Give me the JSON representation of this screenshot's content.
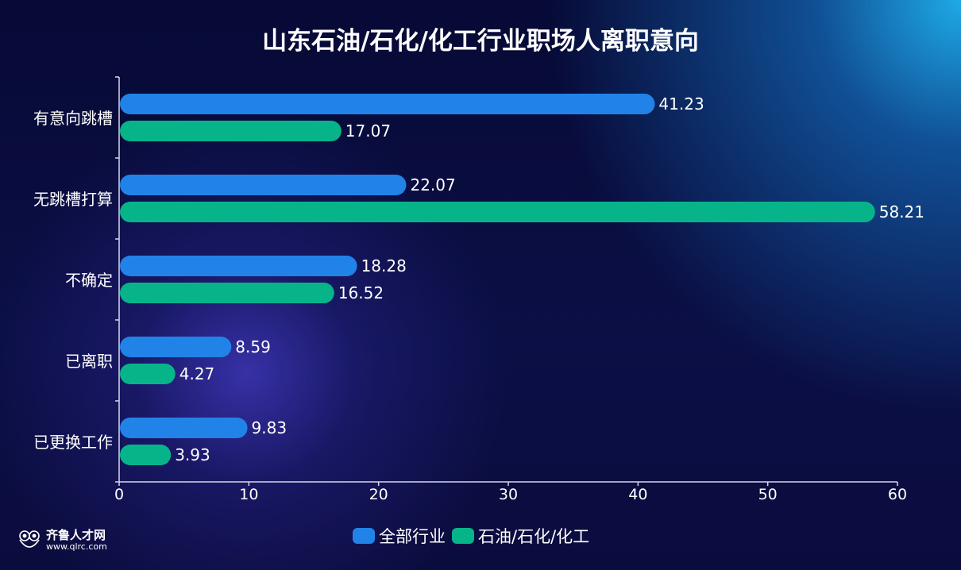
{
  "chart_data": {
    "type": "bar",
    "orientation": "horizontal",
    "title": "山东石油/石化/化工行业职场人离职意向",
    "categories": [
      "有意向跳槽",
      "无跳槽打算",
      "不确定",
      "已离职",
      "已更换工作"
    ],
    "series": [
      {
        "name": "全部行业",
        "color": "#2183e8",
        "values": [
          41.23,
          22.07,
          18.28,
          8.59,
          9.83
        ]
      },
      {
        "name": "石油/石化/化工",
        "color": "#07b48a",
        "values": [
          17.07,
          58.21,
          16.52,
          4.27,
          3.93
        ]
      }
    ],
    "xlim": [
      0,
      60
    ],
    "xticks": [
      0,
      10,
      20,
      30,
      40,
      50,
      60
    ],
    "grid": false,
    "legend": "bottom"
  },
  "logo": {
    "name": "齐鲁人才网",
    "url": "www.qlrc.com"
  }
}
